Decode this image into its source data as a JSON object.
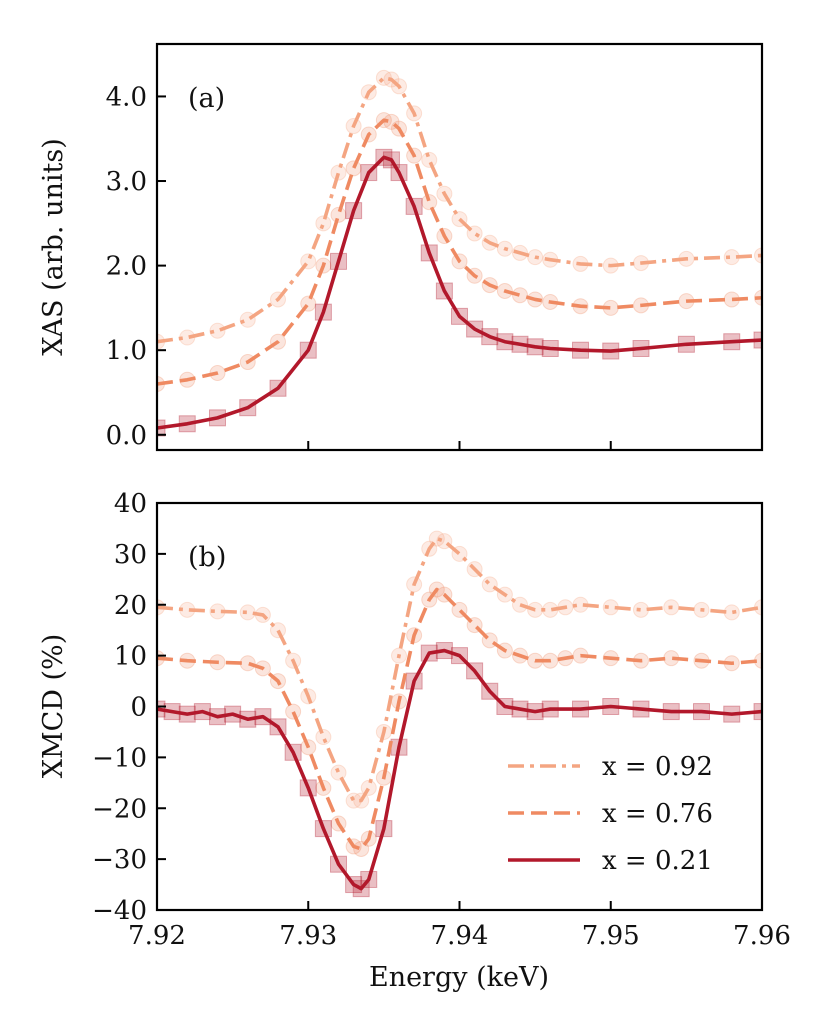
{
  "chart_data": [
    {
      "panel": "(a)",
      "type": "line",
      "ylabel": "XAS (arb. units)",
      "xlim": [
        7.92,
        7.96
      ],
      "ylim": [
        -0.18,
        4.62
      ],
      "yticks": [
        0.0,
        1.0,
        2.0,
        3.0,
        4.0
      ],
      "ytick_labels": [
        "0.0",
        "1.0",
        "2.0",
        "3.0",
        "4.0"
      ],
      "xticks": [
        7.93,
        7.94,
        7.95
      ],
      "series": [
        {
          "name": "x = 0.92",
          "color": "#f4a582",
          "style": "dashdot",
          "marker": "circle",
          "x": [
            7.92,
            7.922,
            7.924,
            7.926,
            7.928,
            7.93,
            7.931,
            7.932,
            7.933,
            7.934,
            7.935,
            7.9355,
            7.936,
            7.937,
            7.938,
            7.939,
            7.94,
            7.941,
            7.942,
            7.943,
            7.944,
            7.945,
            7.946,
            7.948,
            7.95,
            7.952,
            7.955,
            7.958,
            7.96
          ],
          "y": [
            1.1,
            1.15,
            1.23,
            1.36,
            1.6,
            2.05,
            2.5,
            3.1,
            3.65,
            4.05,
            4.22,
            4.2,
            4.12,
            3.8,
            3.25,
            2.85,
            2.55,
            2.38,
            2.27,
            2.2,
            2.15,
            2.1,
            2.07,
            2.02,
            2.0,
            2.03,
            2.08,
            2.1,
            2.12
          ]
        },
        {
          "name": "x = 0.76",
          "color": "#ef8a62",
          "style": "dashed",
          "marker": "circle",
          "x": [
            7.92,
            7.922,
            7.924,
            7.926,
            7.928,
            7.93,
            7.931,
            7.932,
            7.933,
            7.934,
            7.935,
            7.9355,
            7.936,
            7.937,
            7.938,
            7.939,
            7.94,
            7.941,
            7.942,
            7.943,
            7.944,
            7.945,
            7.946,
            7.948,
            7.95,
            7.952,
            7.955,
            7.958,
            7.96
          ],
          "y": [
            0.6,
            0.65,
            0.73,
            0.86,
            1.1,
            1.55,
            2.0,
            2.6,
            3.15,
            3.55,
            3.72,
            3.7,
            3.62,
            3.3,
            2.75,
            2.35,
            2.05,
            1.88,
            1.77,
            1.7,
            1.65,
            1.6,
            1.57,
            1.52,
            1.5,
            1.53,
            1.58,
            1.6,
            1.62
          ]
        },
        {
          "name": "x = 0.21",
          "color": "#b2182b",
          "style": "solid",
          "marker": "square",
          "x": [
            7.92,
            7.922,
            7.924,
            7.926,
            7.928,
            7.93,
            7.931,
            7.932,
            7.933,
            7.934,
            7.935,
            7.9355,
            7.936,
            7.937,
            7.938,
            7.939,
            7.94,
            7.941,
            7.942,
            7.943,
            7.944,
            7.945,
            7.946,
            7.948,
            7.95,
            7.952,
            7.955,
            7.958,
            7.96
          ],
          "y": [
            0.08,
            0.13,
            0.2,
            0.32,
            0.55,
            1.0,
            1.45,
            2.05,
            2.65,
            3.1,
            3.28,
            3.25,
            3.1,
            2.7,
            2.15,
            1.7,
            1.4,
            1.25,
            1.16,
            1.1,
            1.07,
            1.04,
            1.02,
            1.0,
            0.99,
            1.02,
            1.07,
            1.1,
            1.12
          ]
        }
      ]
    },
    {
      "panel": "(b)",
      "type": "line",
      "xlabel": "Energy (keV)",
      "ylabel": "XMCD (%)",
      "xlim": [
        7.92,
        7.96
      ],
      "ylim": [
        -40,
        40
      ],
      "yticks": [
        -40,
        -30,
        -20,
        -10,
        0,
        10,
        20,
        30,
        40
      ],
      "ytick_labels": [
        "−40",
        "−30",
        "−20",
        "−10",
        "0",
        "10",
        "20",
        "30",
        "40"
      ],
      "xticks": [
        7.92,
        7.93,
        7.94,
        7.95,
        7.96
      ],
      "xtick_labels": [
        "7.92",
        "7.93",
        "7.94",
        "7.95",
        "7.96"
      ],
      "legend": {
        "location": "lower-right",
        "entries": [
          "x = 0.92",
          "x = 0.76",
          "x = 0.21"
        ]
      },
      "series": [
        {
          "name": "x = 0.92",
          "color": "#f4a582",
          "style": "dashdot",
          "marker": "circle",
          "x": [
            7.92,
            7.922,
            7.924,
            7.926,
            7.927,
            7.928,
            7.929,
            7.93,
            7.931,
            7.932,
            7.933,
            7.9335,
            7.934,
            7.935,
            7.936,
            7.937,
            7.938,
            7.9385,
            7.939,
            7.94,
            7.941,
            7.942,
            7.943,
            7.944,
            7.945,
            7.946,
            7.947,
            7.948,
            7.95,
            7.952,
            7.954,
            7.956,
            7.958,
            7.96
          ],
          "y": [
            19.5,
            19,
            18.7,
            18.5,
            18,
            15,
            9,
            2,
            -6,
            -13,
            -18.5,
            -18.5,
            -16,
            -5,
            10,
            24,
            31,
            33,
            32.5,
            30,
            27,
            24,
            22,
            20,
            19,
            19,
            19.5,
            20,
            19.5,
            19,
            19.5,
            19,
            18.5,
            19.5
          ]
        },
        {
          "name": "x = 0.76",
          "color": "#ef8a62",
          "style": "dashed",
          "marker": "circle",
          "x": [
            7.92,
            7.922,
            7.924,
            7.926,
            7.927,
            7.928,
            7.929,
            7.93,
            7.931,
            7.932,
            7.933,
            7.9335,
            7.934,
            7.935,
            7.936,
            7.937,
            7.938,
            7.9385,
            7.939,
            7.94,
            7.941,
            7.942,
            7.943,
            7.944,
            7.945,
            7.946,
            7.947,
            7.948,
            7.95,
            7.952,
            7.954,
            7.956,
            7.958,
            7.96
          ],
          "y": [
            9.5,
            9,
            8.7,
            8.5,
            7.5,
            5,
            -1,
            -8,
            -16,
            -23,
            -27.5,
            -28,
            -26,
            -14,
            1,
            14,
            21,
            23,
            22,
            19,
            16,
            13,
            11,
            10,
            9,
            9,
            9.5,
            10,
            9.5,
            9,
            9.5,
            9,
            8.5,
            9
          ]
        },
        {
          "name": "x = 0.21",
          "color": "#b2182b",
          "style": "solid",
          "marker": "square",
          "x": [
            7.92,
            7.921,
            7.922,
            7.923,
            7.924,
            7.925,
            7.926,
            7.927,
            7.928,
            7.929,
            7.93,
            7.931,
            7.932,
            7.933,
            7.9335,
            7.934,
            7.935,
            7.936,
            7.937,
            7.938,
            7.939,
            7.94,
            7.941,
            7.942,
            7.943,
            7.944,
            7.945,
            7.946,
            7.948,
            7.95,
            7.952,
            7.954,
            7.956,
            7.958,
            7.96
          ],
          "y": [
            -0.5,
            -1,
            -1.5,
            -1,
            -2,
            -1.5,
            -2.5,
            -2,
            -4,
            -9,
            -16,
            -24,
            -31,
            -35,
            -35.8,
            -34,
            -24,
            -8,
            5,
            10.5,
            11,
            10,
            7,
            3,
            0,
            -0.5,
            -1,
            -0.5,
            -0.5,
            0,
            -0.5,
            -1,
            -1,
            -1.5,
            -1
          ]
        }
      ]
    }
  ]
}
